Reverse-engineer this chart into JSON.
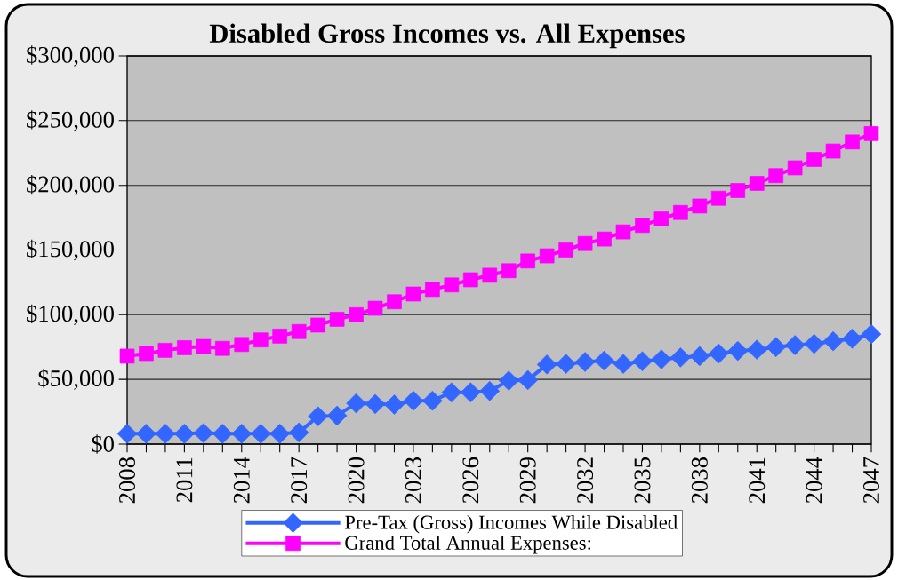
{
  "chart_data": {
    "type": "line",
    "title": "Disabled Gross Incomes vs. All Expenses",
    "categories": [
      "2008",
      null,
      null,
      "2011",
      null,
      null,
      "2014",
      null,
      null,
      "2017",
      null,
      null,
      "2020",
      null,
      null,
      "2023",
      null,
      null,
      "2026",
      null,
      null,
      "2029",
      null,
      null,
      "2032",
      null,
      null,
      "2035",
      null,
      null,
      "2038",
      null,
      null,
      "2041",
      null,
      null,
      "2044",
      null,
      null,
      "2047"
    ],
    "series": [
      {
        "name": "Pre-Tax (Gross) Incomes While Disabled",
        "color": "#3366ff",
        "marker": "diamond",
        "values": [
          8000,
          8000,
          8000,
          8000,
          8500,
          8000,
          8000,
          8000,
          8000,
          9000,
          21500,
          22000,
          31500,
          31000,
          30500,
          33500,
          33500,
          40000,
          40000,
          41000,
          49000,
          49500,
          61500,
          62000,
          63500,
          64500,
          62000,
          64000,
          65500,
          67000,
          68000,
          70000,
          72000,
          73000,
          75000,
          76500,
          77500,
          79500,
          81500,
          85000
        ]
      },
      {
        "name": "Grand Total Annual Expenses:",
        "color": "#ff00ff",
        "marker": "square",
        "values": [
          68000,
          70000,
          72500,
          74500,
          75500,
          74000,
          77000,
          80500,
          83500,
          87000,
          92000,
          96500,
          100000,
          105000,
          110000,
          116000,
          119500,
          123000,
          127000,
          130500,
          134000,
          141500,
          145500,
          150000,
          155000,
          158500,
          164000,
          169000,
          174000,
          179000,
          184000,
          190000,
          196000,
          201500,
          207500,
          213500,
          220000,
          226500,
          233500,
          240000
        ]
      }
    ],
    "ylim": [
      0,
      300000
    ],
    "yticks": [
      {
        "value": 0,
        "label": "$0"
      },
      {
        "value": 50000,
        "label": "$50,000"
      },
      {
        "value": 100000,
        "label": "$100,000"
      },
      {
        "value": 150000,
        "label": "$150,000"
      },
      {
        "value": 200000,
        "label": "$200,000"
      },
      {
        "value": 250000,
        "label": "$250,000"
      },
      {
        "value": 300000,
        "label": "$300,000"
      }
    ],
    "grid": "y",
    "legend": "bottom",
    "line_style": "solid"
  }
}
